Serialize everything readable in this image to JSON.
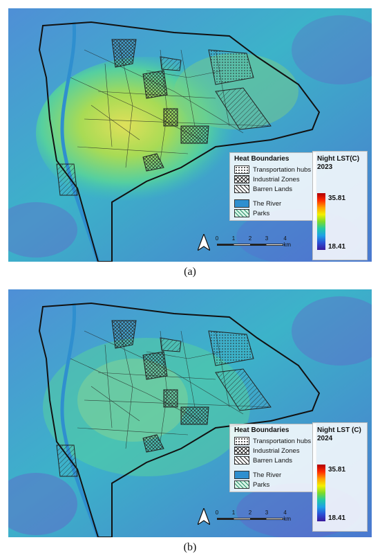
{
  "panels": [
    {
      "caption": "(a)",
      "legend": {
        "title": "Heat Boundaries",
        "items": [
          "Transportation hubs",
          "Industrial Zones",
          "Barren Lands",
          "The River",
          "Parks"
        ]
      },
      "colorbar": {
        "title_line1": "Night LST(C)",
        "title_line2": "2023",
        "max": "35.81",
        "min": "18.41"
      },
      "scale": {
        "ticks": [
          "0",
          "1",
          "2",
          "3",
          "4 km"
        ]
      }
    },
    {
      "caption": "(b)",
      "legend": {
        "title": "Heat Boundaries",
        "items": [
          "Transportation hubs",
          "Industrial Zones",
          "Barren Lands",
          "The River",
          "Parks"
        ]
      },
      "colorbar": {
        "title_line1": "Night LST (C)",
        "title_line2": "2024",
        "max": "35.81",
        "min": "18.41"
      },
      "scale": {
        "ticks": [
          "0",
          "1",
          "2",
          "3",
          "4 km"
        ]
      }
    }
  ],
  "colors": {
    "river": "#2f8fcf",
    "hot": "#d7e04a",
    "warm": "#5fd3a0",
    "cool": "#3aa7d8",
    "cold": "#4a6fd0"
  }
}
